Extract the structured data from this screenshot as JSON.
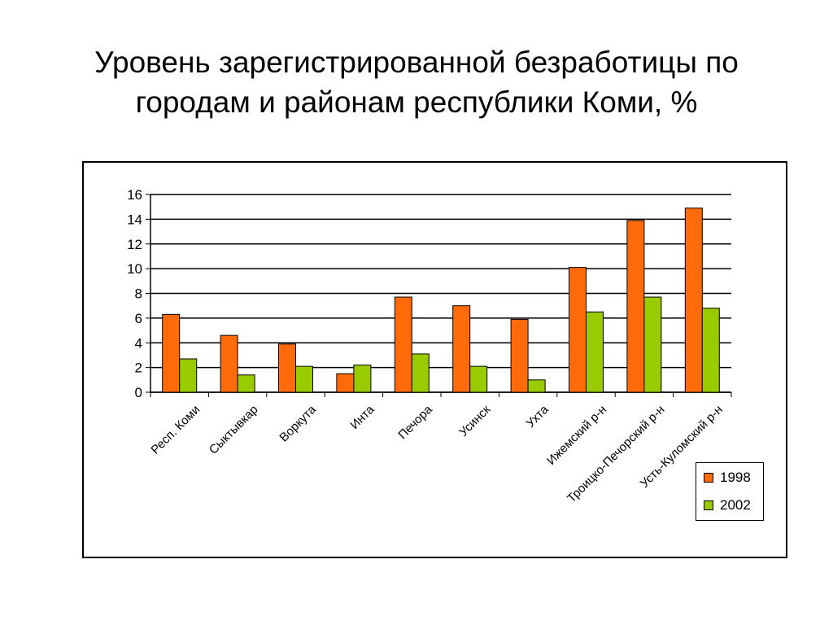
{
  "title": {
    "line1": "Уровень зарегистрированной безработицы по",
    "line2": "городам и районам республики Коми, %"
  },
  "colors": {
    "s1998": "#ff6a0a",
    "s2002": "#99cc00",
    "grid": "#000000"
  },
  "chart_data": {
    "type": "bar",
    "title": "Уровень зарегистрированной безработицы по городам и районам республики Коми, %",
    "xlabel": "",
    "ylabel": "",
    "ylim": [
      0,
      16
    ],
    "yticks": [
      0,
      2,
      4,
      6,
      8,
      10,
      12,
      14,
      16
    ],
    "grid": true,
    "legend_position": "bottom-right",
    "categories": [
      "Респ. Коми",
      "Сыктывкар",
      "Воркута",
      "Инта",
      "Печора",
      "Усинск",
      "Ухта",
      "Ижемский р-н",
      "Троицко-Печорский р-н",
      "Усть-Куломский р-н"
    ],
    "series": [
      {
        "name": "1998",
        "color": "#ff6a0a",
        "values": [
          6.3,
          4.6,
          3.9,
          1.5,
          7.7,
          7.0,
          5.9,
          10.1,
          13.9,
          14.9
        ]
      },
      {
        "name": "2002",
        "color": "#99cc00",
        "values": [
          2.7,
          1.4,
          2.1,
          2.2,
          3.1,
          2.1,
          1.0,
          6.5,
          7.7,
          6.8
        ]
      }
    ]
  }
}
